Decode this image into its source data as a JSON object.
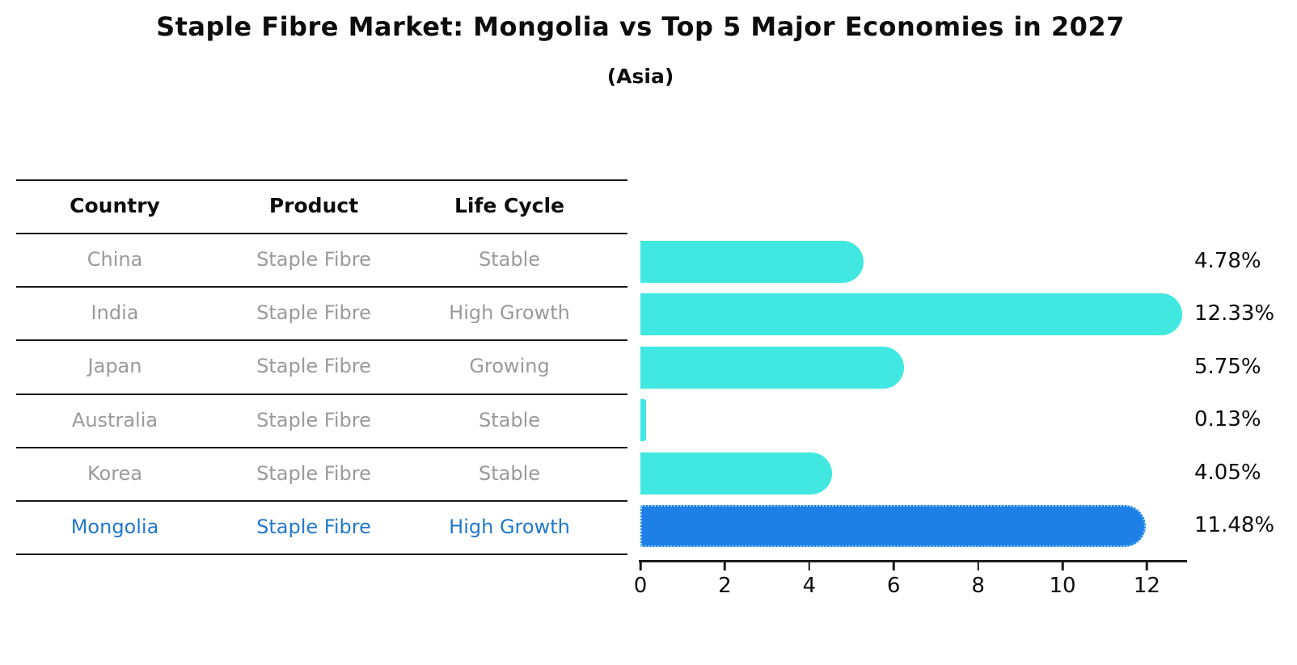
{
  "title": "Staple Fibre Market: Mongolia vs Top 5 Major Economies in 2027",
  "subtitle": "(Asia)",
  "table": {
    "headers": [
      "Country",
      "Product",
      "Life Cycle"
    ],
    "rows": [
      {
        "country": "China",
        "product": "Staple Fibre",
        "life_cycle": "Stable",
        "highlight": false
      },
      {
        "country": "India",
        "product": "Staple Fibre",
        "life_cycle": "High Growth",
        "highlight": false
      },
      {
        "country": "Japan",
        "product": "Staple Fibre",
        "life_cycle": "Growing",
        "highlight": false
      },
      {
        "country": "Australia",
        "product": "Staple Fibre",
        "life_cycle": "Stable",
        "highlight": false
      },
      {
        "country": "Korea",
        "product": "Staple Fibre",
        "life_cycle": "Stable",
        "highlight": false
      },
      {
        "country": "Mongolia",
        "product": "Staple Fibre",
        "life_cycle": "High Growth",
        "highlight": true
      }
    ]
  },
  "chart_data": {
    "type": "bar",
    "orientation": "horizontal",
    "title": "Staple Fibre Market: Mongolia vs Top 5 Major Economies in 2027",
    "subtitle": "(Asia)",
    "categories": [
      "China",
      "India",
      "Japan",
      "Australia",
      "Korea",
      "Mongolia"
    ],
    "values": [
      4.78,
      12.33,
      5.75,
      0.13,
      4.05,
      11.48
    ],
    "value_labels": [
      "4.78%",
      "12.33%",
      "5.75%",
      "0.13%",
      "4.05%",
      "11.48%"
    ],
    "xticks": [
      "0",
      "2",
      "4",
      "6",
      "8",
      "10",
      "12"
    ],
    "xtick_values": [
      0,
      2,
      4,
      6,
      8,
      10,
      12
    ],
    "xlim": [
      0,
      13
    ],
    "grid": false,
    "legend": false,
    "bar_color": "#40e8e1",
    "highlight_bar_color": "#1e7fe6",
    "highlight_bar_border_color": "#9bd4f2",
    "highlight_index": 5
  },
  "colors": {
    "row_text": "#9a9a9a",
    "highlight_text": "#2278cd",
    "header_text": "#0d0d0d",
    "axis": "#1a1a1a"
  }
}
